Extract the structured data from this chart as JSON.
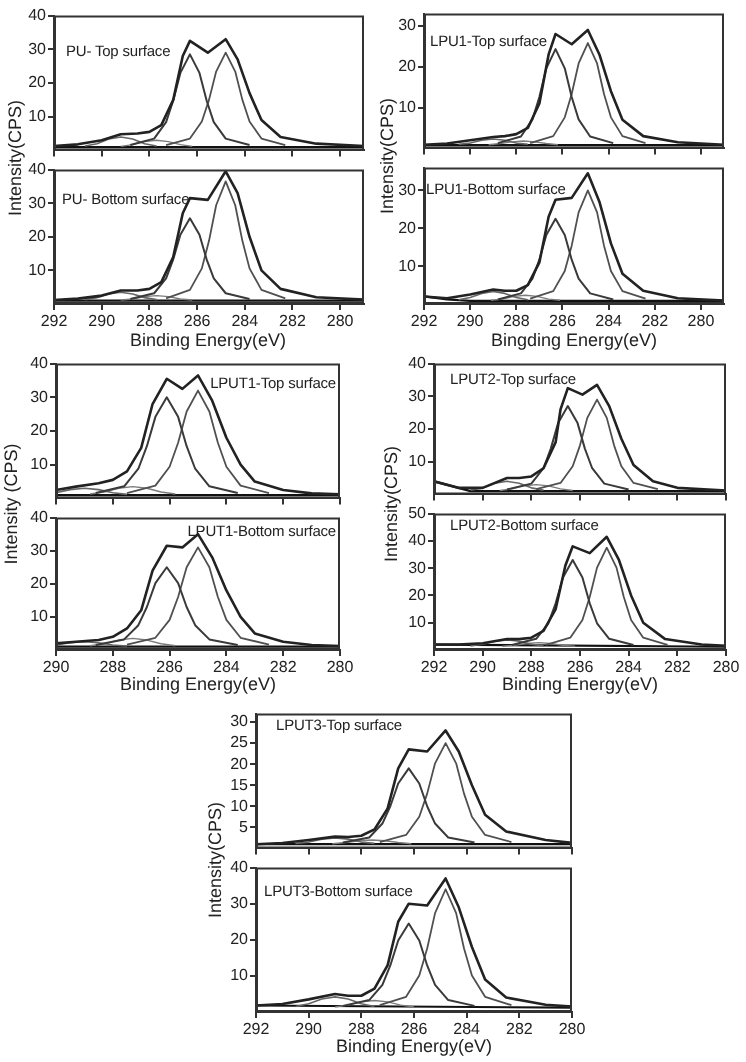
{
  "chart_data": [
    {
      "type": "line",
      "marker": "none",
      "annotations": [
        "PU- Top surface"
      ],
      "ylabel": "Intensity(CPS)",
      "tick_labels": "y",
      "xlim": [
        292,
        279
      ],
      "xticks": [
        292,
        290,
        288,
        286,
        284,
        282,
        280
      ],
      "ylim": [
        0,
        40
      ],
      "yticks": [
        10,
        20,
        30,
        40
      ],
      "series": [
        {
          "color": "#222222",
          "x": [
            292,
            291,
            290,
            289.2,
            288.5,
            288,
            287.5,
            287,
            286.6,
            286.3,
            285.55,
            284.8,
            284.3,
            283.8,
            283.3,
            282.5,
            281,
            279
          ],
          "values": [
            1.3,
            1.8,
            3,
            4.8,
            5,
            5.5,
            7.5,
            15,
            28,
            32.5,
            29,
            33,
            27,
            17,
            9,
            4,
            2,
            1.3
          ]
        },
        {
          "color": "#3a3a3a",
          "x": [
            288.8,
            287.8,
            287.3,
            287,
            286.7,
            286.3,
            285.9,
            285.6,
            285.3,
            284.8,
            283.8
          ],
          "values": [
            1.6,
            3.5,
            8.4,
            14.8,
            23,
            28.5,
            23,
            14.8,
            8.4,
            3.5,
            1.6
          ]
        },
        {
          "color": "#505050",
          "x": [
            287.3,
            286.3,
            285.8,
            285.5,
            285.2,
            284.8,
            284.4,
            284.1,
            283.8,
            283.3,
            282.3
          ],
          "values": [
            1.6,
            3.5,
            8.6,
            15,
            23.4,
            29,
            23.4,
            15,
            8.6,
            3.5,
            1.6
          ]
        },
        {
          "color": "#666666",
          "x": [
            290.7,
            290.2,
            289.7,
            289.2,
            288.7,
            288.2,
            287.7
          ],
          "values": [
            1.3,
            2,
            3.4,
            4,
            3.4,
            2,
            1.3
          ]
        },
        {
          "color": "#7c7c7c",
          "x": [
            289.2,
            288.7,
            288.2,
            287.7,
            287.2,
            286.7,
            286.2
          ],
          "values": [
            1.2,
            1.7,
            2.6,
            3,
            2.6,
            1.7,
            1.2
          ]
        },
        {
          "color": "#111111",
          "x": [
            292,
            279
          ],
          "values": [
            1,
            1
          ]
        }
      ]
    },
    {
      "type": "line",
      "marker": "none",
      "annotations": [
        "PU- Bottom surface"
      ],
      "xlabel": "Binding Energy(eV)",
      "xlim": [
        292,
        279
      ],
      "xticks": [
        292,
        290,
        288,
        286,
        284,
        282,
        280
      ],
      "ylim": [
        0,
        40
      ],
      "yticks": [
        10,
        20,
        30,
        40
      ],
      "series": [
        {
          "color": "#222222",
          "x": [
            292,
            291,
            290,
            289.2,
            288.5,
            288,
            287.5,
            287,
            286.6,
            286.3,
            285.55,
            284.8,
            284.3,
            283.8,
            283.3,
            282.5,
            281,
            279
          ],
          "values": [
            1.2,
            1.6,
            2.5,
            4,
            4,
            4.5,
            6.5,
            14,
            27,
            31.5,
            31,
            39.5,
            33,
            20,
            10,
            4.5,
            2,
            1.3
          ]
        },
        {
          "color": "#3a3a3a",
          "x": [
            288.8,
            287.8,
            287.3,
            287,
            286.7,
            286.3,
            285.9,
            285.6,
            285.3,
            284.8,
            283.8
          ],
          "values": [
            1.5,
            3.2,
            7.6,
            13.3,
            20.6,
            25.5,
            20.6,
            13.3,
            7.6,
            3.2,
            1.5
          ]
        },
        {
          "color": "#505050",
          "x": [
            287.3,
            286.3,
            285.8,
            285.5,
            285.2,
            284.8,
            284.4,
            284.1,
            283.8,
            283.3,
            282.3
          ],
          "values": [
            1.7,
            4.2,
            10.6,
            18.8,
            29.4,
            36.5,
            29.4,
            18.8,
            10.6,
            4.2,
            1.7
          ]
        },
        {
          "color": "#666666",
          "x": [
            290.7,
            290.2,
            289.7,
            289.2,
            288.7,
            288.2,
            287.7
          ],
          "values": [
            1.3,
            1.9,
            3,
            3.5,
            3,
            1.9,
            1.3
          ]
        },
        {
          "color": "#7c7c7c",
          "x": [
            289.2,
            288.7,
            288.2,
            287.7,
            287.2,
            286.7,
            286.2
          ],
          "values": [
            1.2,
            1.5,
            2.2,
            2.5,
            2.2,
            1.5,
            1.2
          ]
        },
        {
          "color": "#111111",
          "x": [
            292,
            279
          ],
          "values": [
            1,
            1
          ]
        }
      ]
    },
    {
      "type": "line",
      "marker": "none",
      "annotations": [
        "LPU1-Top surface"
      ],
      "ylabel": "Intensity(CPS)",
      "tick_labels": "y",
      "xlim": [
        292,
        279
      ],
      "xticks": [
        292,
        290,
        288,
        286,
        284,
        282,
        280
      ],
      "ylim": [
        0,
        33
      ],
      "yticks": [
        10,
        20,
        30
      ],
      "series": [
        {
          "color": "#222222",
          "x": [
            292,
            291,
            290,
            289,
            288.5,
            288,
            287.5,
            287,
            286.6,
            286.3,
            285.6,
            284.9,
            284.4,
            283.9,
            283.4,
            282.5,
            281,
            279
          ],
          "values": [
            0.9,
            1.2,
            2,
            2.8,
            3,
            3.5,
            5,
            11,
            23,
            28,
            25.5,
            29,
            23,
            14,
            7,
            3,
            1.5,
            0.9
          ]
        },
        {
          "color": "#3a3a3a",
          "x": [
            288.8,
            287.8,
            287.3,
            287,
            286.7,
            286.3,
            285.9,
            285.6,
            285.3,
            284.8,
            283.8
          ],
          "values": [
            1.3,
            2.9,
            7.1,
            12.6,
            19.6,
            24.3,
            19.6,
            12.6,
            7.1,
            2.9,
            1.3
          ]
        },
        {
          "color": "#505050",
          "x": [
            287.4,
            286.4,
            285.9,
            285.6,
            285.3,
            284.9,
            284.5,
            284.2,
            283.9,
            283.4,
            282.4
          ],
          "values": [
            1.3,
            3,
            7.6,
            13.3,
            20.8,
            25.8,
            20.8,
            13.3,
            7.6,
            3,
            1.3
          ]
        },
        {
          "color": "#666666",
          "x": [
            290.5,
            290,
            289.5,
            289,
            288.5,
            288,
            287.5
          ],
          "values": [
            1,
            1.3,
            2,
            2.3,
            2,
            1.3,
            1
          ]
        },
        {
          "color": "#7c7c7c",
          "x": [
            289.2,
            288.7,
            288.2,
            287.7,
            287.2,
            286.7,
            286.2
          ],
          "values": [
            0.9,
            1.2,
            1.6,
            1.8,
            1.6,
            1.2,
            0.9
          ]
        },
        {
          "color": "#111111",
          "x": [
            292,
            279
          ],
          "values": [
            0.8,
            0.8
          ]
        }
      ]
    },
    {
      "type": "line",
      "marker": "none",
      "annotations": [
        "LPU1-Bottom surface"
      ],
      "xlabel": "Bingding Energy(eV)",
      "xlim": [
        292,
        279
      ],
      "xticks": [
        292,
        290,
        288,
        286,
        284,
        282,
        280
      ],
      "ylim": [
        0,
        36
      ],
      "yticks": [
        10,
        20,
        30
      ],
      "series": [
        {
          "color": "#222222",
          "x": [
            292,
            291,
            290,
            289,
            288.5,
            288,
            287.5,
            287,
            286.6,
            286.3,
            285.6,
            284.9,
            284.4,
            283.9,
            283.4,
            282.5,
            281,
            279
          ],
          "values": [
            2,
            1.5,
            2.5,
            3.8,
            3.5,
            3.5,
            5,
            11,
            23,
            27.5,
            28,
            34.5,
            27,
            16,
            8,
            3.5,
            1.5,
            0.9
          ]
        },
        {
          "color": "#3a3a3a",
          "x": [
            288.8,
            287.8,
            287.3,
            287,
            286.7,
            286.3,
            285.9,
            285.6,
            285.3,
            284.8,
            283.8
          ],
          "values": [
            1.2,
            2.8,
            6.7,
            11.7,
            18.2,
            22.5,
            18.2,
            11.7,
            6.7,
            2.8,
            1.2
          ]
        },
        {
          "color": "#505050",
          "x": [
            287.4,
            286.4,
            285.9,
            285.6,
            285.3,
            284.9,
            284.5,
            284.2,
            283.9,
            283.4,
            282.4
          ],
          "values": [
            1.4,
            3.4,
            8.7,
            15.4,
            24.2,
            30,
            24.2,
            15.4,
            8.7,
            3.4,
            1.4
          ]
        },
        {
          "color": "#666666",
          "x": [
            290.5,
            290,
            289.5,
            289,
            288.5,
            288,
            287.5
          ],
          "values": [
            1.1,
            1.7,
            2.8,
            3.3,
            2.8,
            1.7,
            1.1
          ]
        },
        {
          "color": "#7c7c7c",
          "x": [
            289.1,
            288.6,
            288.1,
            287.6,
            287.1,
            286.6,
            286.1
          ],
          "values": [
            1,
            1.3,
            2,
            2.3,
            2,
            1.3,
            1
          ]
        },
        {
          "color": "#111111",
          "x": [
            292,
            291,
            290,
            279
          ],
          "values": [
            2,
            1.2,
            0.8,
            0.8
          ]
        }
      ]
    },
    {
      "type": "line",
      "marker": "none",
      "annotations": [
        "LPUT1-Top surface"
      ],
      "ylabel": "Intensity (CPS)",
      "tick_labels": "y",
      "xlim": [
        290,
        280
      ],
      "xticks": [
        290,
        288,
        286,
        284,
        282,
        280
      ],
      "ylim": [
        0,
        40
      ],
      "yticks": [
        10,
        20,
        30,
        40
      ],
      "series": [
        {
          "color": "#222222",
          "x": [
            290,
            289.3,
            288.5,
            288,
            287.5,
            287,
            286.6,
            286.1,
            285.55,
            285,
            284.5,
            284,
            283.5,
            283,
            282,
            281,
            280
          ],
          "values": [
            2.5,
            3.5,
            4.5,
            5.5,
            8,
            15,
            28,
            35.5,
            32.5,
            36.5,
            29,
            18,
            10,
            5,
            2.5,
            1.5,
            1.2
          ]
        },
        {
          "color": "#3a3a3a",
          "x": [
            288.6,
            287.6,
            287.1,
            286.8,
            286.5,
            286.1,
            285.7,
            285.4,
            285.1,
            284.6,
            283.6
          ],
          "values": [
            1.6,
            3.6,
            8.8,
            15.5,
            24.2,
            30,
            24.2,
            15.5,
            8.8,
            3.6,
            1.6
          ]
        },
        {
          "color": "#505050",
          "x": [
            287.5,
            286.5,
            286,
            285.7,
            285.4,
            285,
            284.6,
            284.3,
            284,
            283.5,
            282.5
          ],
          "values": [
            1.6,
            3.8,
            9.4,
            16.5,
            25.8,
            32,
            25.8,
            16.5,
            9.4,
            3.8,
            1.6
          ]
        },
        {
          "color": "#666666",
          "x": [
            290,
            289.5,
            289,
            288.5,
            288,
            287.5
          ],
          "values": [
            1.7,
            2.6,
            3,
            2.6,
            1.7,
            1.2
          ]
        },
        {
          "color": "#7c7c7c",
          "x": [
            288.8,
            288.3,
            287.8,
            287.3,
            286.8,
            286.3,
            285.8
          ],
          "values": [
            1.3,
            1.9,
            3,
            3.5,
            3,
            1.9,
            1.3
          ]
        },
        {
          "color": "#111111",
          "x": [
            290,
            280
          ],
          "values": [
            1,
            1
          ]
        }
      ]
    },
    {
      "type": "line",
      "marker": "none",
      "annotations": [
        "LPUT1-Bottom surface"
      ],
      "xlabel": "Binding Energy(eV)",
      "xlim": [
        290,
        280
      ],
      "xticks": [
        290,
        288,
        286,
        284,
        282,
        280
      ],
      "ylim": [
        0,
        40
      ],
      "yticks": [
        10,
        20,
        30,
        40
      ],
      "series": [
        {
          "color": "#222222",
          "x": [
            290,
            289.3,
            288.5,
            288,
            287.5,
            287,
            286.6,
            286.1,
            285.55,
            285,
            284.5,
            284,
            283.5,
            283,
            282,
            281,
            280
          ],
          "values": [
            2,
            2.5,
            3,
            4,
            6.5,
            12,
            24,
            31.5,
            31,
            35,
            28,
            18,
            10,
            5,
            2.5,
            1.5,
            1.2
          ]
        },
        {
          "color": "#3a3a3a",
          "x": [
            288.6,
            287.6,
            287.1,
            286.8,
            286.5,
            286.1,
            285.7,
            285.4,
            285.1,
            284.6,
            283.6
          ],
          "values": [
            1.5,
            3.2,
            7.5,
            13,
            20.2,
            25,
            20.2,
            13,
            7.5,
            3.2,
            1.5
          ]
        },
        {
          "color": "#505050",
          "x": [
            287.5,
            286.5,
            286,
            285.7,
            285.4,
            285,
            284.6,
            284.3,
            284,
            283.5,
            282.5
          ],
          "values": [
            1.6,
            3.7,
            9.1,
            16,
            25,
            31,
            25,
            16,
            9.1,
            3.7,
            1.6
          ]
        },
        {
          "color": "#666666",
          "x": [
            290,
            289.5,
            289,
            288.5,
            288,
            287.5
          ],
          "values": [
            1.5,
            2.2,
            2.5,
            2.2,
            1.5,
            1.2
          ]
        },
        {
          "color": "#7c7c7c",
          "x": [
            288.8,
            288.3,
            287.8,
            287.3,
            286.8,
            286.3,
            285.8
          ],
          "values": [
            1.3,
            1.9,
            3,
            3.5,
            3,
            1.9,
            1.3
          ]
        },
        {
          "color": "#111111",
          "x": [
            290,
            280
          ],
          "values": [
            1,
            1
          ]
        }
      ]
    },
    {
      "type": "line",
      "marker": "none",
      "annotations": [
        "LPUT2-Top surface"
      ],
      "ylabel": "Intensity(CPS)",
      "tick_labels": "y",
      "xlim": [
        292,
        280
      ],
      "xticks": [
        292,
        290,
        288,
        286,
        284,
        282,
        280
      ],
      "ylim": [
        0,
        40
      ],
      "yticks": [
        10,
        20,
        30,
        40
      ],
      "series": [
        {
          "color": "#222222",
          "x": [
            292,
            291,
            290,
            289,
            288.5,
            288,
            287.5,
            287,
            286.8,
            286.5,
            285.9,
            285.3,
            284.8,
            284.3,
            283.8,
            283,
            282,
            280
          ],
          "values": [
            4,
            2,
            2,
            5,
            5,
            5.5,
            8,
            16,
            26,
            32.5,
            30.5,
            33.5,
            27,
            17,
            9,
            4,
            2,
            1.2
          ]
        },
        {
          "color": "#3a3a3a",
          "x": [
            289,
            288,
            287.5,
            287.2,
            286.9,
            286.5,
            286.1,
            285.8,
            285.5,
            285,
            284
          ],
          "values": [
            1.5,
            3.3,
            8,
            14,
            21.8,
            27,
            21.8,
            14,
            8,
            3.3,
            1.5
          ]
        },
        {
          "color": "#505050",
          "x": [
            287.8,
            286.8,
            286.3,
            286,
            285.7,
            285.3,
            284.9,
            284.6,
            284.3,
            283.8,
            282.8
          ],
          "values": [
            1.6,
            3.5,
            8.6,
            15,
            23.4,
            29,
            23.4,
            15,
            8.6,
            3.5,
            1.6
          ]
        },
        {
          "color": "#666666",
          "x": [
            290.5,
            290,
            289.5,
            289,
            288.5,
            288,
            287.5
          ],
          "values": [
            1.3,
            2,
            3.4,
            4,
            3.4,
            2,
            1.3
          ]
        },
        {
          "color": "#7c7c7c",
          "x": [
            289.3,
            288.8,
            288.3,
            287.8,
            287.3,
            286.8,
            286.3
          ],
          "values": [
            1.2,
            1.7,
            2.6,
            3,
            2.6,
            1.7,
            1.2
          ]
        },
        {
          "color": "#111111",
          "x": [
            292,
            291,
            290.5,
            280
          ],
          "values": [
            4,
            2,
            1,
            1
          ]
        }
      ]
    },
    {
      "type": "line",
      "marker": "none",
      "annotations": [
        "LPUT2-Bottom surface"
      ],
      "xlabel": "Binding Energy(eV)",
      "xlim": [
        292,
        280
      ],
      "xticks": [
        292,
        290,
        288,
        286,
        284,
        282,
        280
      ],
      "ylim": [
        0,
        50
      ],
      "yticks": [
        10,
        20,
        30,
        40,
        50
      ],
      "series": [
        {
          "color": "#222222",
          "x": [
            292,
            291,
            290,
            289,
            288.5,
            288,
            287.5,
            287,
            286.6,
            286.3,
            285.6,
            284.9,
            284.4,
            283.9,
            283.4,
            282.5,
            281,
            280
          ],
          "values": [
            2,
            2,
            2.5,
            4,
            4,
            4.5,
            7,
            15,
            31,
            38,
            35.5,
            41.5,
            33,
            20,
            10,
            4,
            2,
            1.5
          ]
        },
        {
          "color": "#3a3a3a",
          "x": [
            288.8,
            287.8,
            287.3,
            287,
            286.7,
            286.3,
            285.9,
            285.6,
            285.3,
            284.8,
            283.8
          ],
          "values": [
            1.8,
            4.1,
            9.8,
            17.1,
            26.6,
            33,
            26.6,
            17.1,
            9.8,
            4.1,
            1.8
          ]
        },
        {
          "color": "#505050",
          "x": [
            287.4,
            286.4,
            285.9,
            285.6,
            285.3,
            284.9,
            284.5,
            284.2,
            283.9,
            283.4,
            282.4
          ],
          "values": [
            1.9,
            4.5,
            11,
            19.4,
            30.2,
            37.5,
            30.2,
            19.4,
            11,
            4.5,
            1.9
          ]
        },
        {
          "color": "#666666",
          "x": [
            290.5,
            290,
            289.5,
            289,
            288.5,
            288,
            287.5
          ],
          "values": [
            1.5,
            2.1,
            3.2,
            3.7,
            3.2,
            2.1,
            1.5
          ]
        },
        {
          "color": "#7c7c7c",
          "x": [
            289.2,
            288.7,
            288.2,
            287.7,
            287.2,
            286.7,
            286.2
          ],
          "values": [
            1.4,
            1.7,
            2.4,
            2.7,
            2.4,
            1.7,
            1.4
          ]
        },
        {
          "color": "#111111",
          "x": [
            292,
            280
          ],
          "values": [
            2,
            1.2
          ]
        }
      ]
    },
    {
      "type": "line",
      "marker": "none",
      "annotations": [
        "LPUT3-Top surface"
      ],
      "ylabel": "Intensity(CPS)",
      "tick_labels": "y",
      "xlim": [
        292,
        280
      ],
      "xticks": [
        292,
        290,
        288,
        286,
        284,
        282,
        280
      ],
      "ylim": [
        0,
        32
      ],
      "yticks": [
        5,
        10,
        15,
        20,
        25,
        30
      ],
      "series": [
        {
          "color": "#222222",
          "x": [
            292,
            291,
            290,
            289,
            288.5,
            288,
            287.5,
            287,
            286.6,
            286.2,
            285.5,
            284.8,
            284.3,
            283.8,
            283.3,
            282.5,
            281,
            280
          ],
          "values": [
            1,
            1.3,
            2,
            2.8,
            2.7,
            3,
            4.5,
            9.5,
            19,
            23.5,
            23,
            28,
            23,
            15,
            8,
            4,
            2,
            1.3
          ]
        },
        {
          "color": "#3a3a3a",
          "x": [
            288.7,
            287.7,
            287.2,
            286.9,
            286.6,
            286.2,
            285.8,
            285.5,
            285.2,
            284.7,
            283.7
          ],
          "values": [
            1.4,
            2.6,
            5.9,
            10,
            15.4,
            19,
            15.4,
            10,
            5.9,
            2.6,
            1.4
          ]
        },
        {
          "color": "#505050",
          "x": [
            287.3,
            286.3,
            285.8,
            285.5,
            285.2,
            284.8,
            284.4,
            284.1,
            283.8,
            283.3,
            282.3
          ],
          "values": [
            1.5,
            3.2,
            7.5,
            13,
            20.2,
            25,
            20.2,
            13,
            7.5,
            3.2,
            1.5
          ]
        },
        {
          "color": "#666666",
          "x": [
            290.5,
            290,
            289.5,
            289,
            288.5,
            288,
            287.5
          ],
          "values": [
            1.2,
            1.5,
            2.2,
            2.5,
            2.2,
            1.5,
            1.2
          ]
        },
        {
          "color": "#7c7c7c",
          "x": [
            289.1,
            288.6,
            288.1,
            287.6,
            287.1,
            286.6,
            286.1
          ],
          "values": [
            1.1,
            1.4,
            1.8,
            2,
            1.8,
            1.4,
            1.1
          ]
        },
        {
          "color": "#111111",
          "x": [
            292,
            280
          ],
          "values": [
            1,
            1
          ]
        }
      ]
    },
    {
      "type": "line",
      "marker": "none",
      "annotations": [
        "LPUT3-Bottom surface"
      ],
      "xlabel": "Binding Energy(eV)",
      "xlim": [
        292,
        280
      ],
      "xticks": [
        292,
        290,
        288,
        286,
        284,
        282,
        280
      ],
      "ylim": [
        0,
        40
      ],
      "yticks": [
        10,
        20,
        30,
        40
      ],
      "series": [
        {
          "color": "#222222",
          "x": [
            292,
            291,
            290,
            289,
            288.5,
            288,
            287.5,
            287,
            286.6,
            286.2,
            285.5,
            284.8,
            284.3,
            283.8,
            283.3,
            282.5,
            281,
            280
          ],
          "values": [
            1.8,
            2.2,
            3.5,
            5,
            4.5,
            4.5,
            6.5,
            13,
            25,
            30,
            29.5,
            37,
            29,
            18,
            9,
            4,
            2,
            1.5
          ]
        },
        {
          "color": "#3a3a3a",
          "x": [
            288.7,
            287.7,
            287.2,
            286.9,
            286.6,
            286.2,
            285.8,
            285.5,
            285.2,
            284.7,
            283.7
          ],
          "values": [
            1.7,
            3.3,
            7.5,
            12.9,
            19.8,
            24.5,
            19.8,
            12.9,
            7.5,
            3.3,
            1.7
          ]
        },
        {
          "color": "#505050",
          "x": [
            287.3,
            286.3,
            285.8,
            285.5,
            285.2,
            284.8,
            284.4,
            284.1,
            283.8,
            283.3,
            282.3
          ],
          "values": [
            1.9,
            4.2,
            10.1,
            17.6,
            27.4,
            34,
            27.4,
            17.6,
            10.1,
            4.2,
            1.9
          ]
        },
        {
          "color": "#666666",
          "x": [
            290.5,
            290,
            289.5,
            289,
            288.5,
            288,
            287.5
          ],
          "values": [
            1.5,
            2.3,
            3.6,
            4.2,
            3.6,
            2.3,
            1.5
          ]
        },
        {
          "color": "#7c7c7c",
          "x": [
            289,
            288.5,
            288,
            287.5,
            287,
            286.5,
            286
          ],
          "values": [
            1.4,
            1.9,
            2.8,
            3.2,
            2.8,
            1.9,
            1.4
          ]
        },
        {
          "color": "#111111",
          "x": [
            292,
            280
          ],
          "values": [
            1.8,
            1.2
          ]
        }
      ]
    }
  ]
}
